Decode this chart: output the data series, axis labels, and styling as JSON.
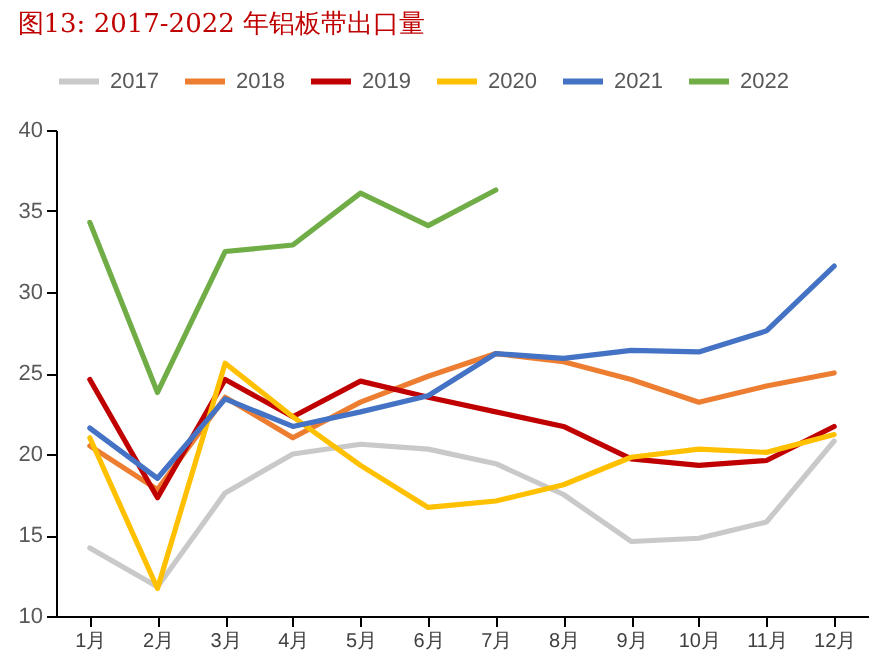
{
  "chart_data": {
    "type": "line",
    "title": "图13:    2017-2022 年铝板带出口量",
    "categories": [
      "1月",
      "2月",
      "3月",
      "4月",
      "5月",
      "6月",
      "7月",
      "8月",
      "9月",
      "10月",
      "11月",
      "12月"
    ],
    "series": [
      {
        "name": "2017",
        "color": "#c9c9c9",
        "values": [
          14.2,
          11.8,
          17.6,
          20.0,
          20.6,
          20.3,
          19.4,
          17.5,
          14.6,
          14.8,
          15.8,
          20.8
        ]
      },
      {
        "name": "2018",
        "color": "#ed7d31",
        "values": [
          20.5,
          17.8,
          23.5,
          21.0,
          23.2,
          24.8,
          26.2,
          25.7,
          24.6,
          23.2,
          24.2,
          25.0
        ]
      },
      {
        "name": "2019",
        "color": "#c00000",
        "values": [
          24.6,
          17.3,
          24.6,
          22.3,
          24.5,
          23.5,
          22.6,
          21.7,
          19.7,
          19.3,
          19.6,
          21.7
        ]
      },
      {
        "name": "2020",
        "color": "#ffc000",
        "values": [
          21.0,
          11.7,
          25.6,
          22.3,
          19.3,
          16.7,
          17.1,
          18.1,
          19.8,
          20.3,
          20.1,
          21.2
        ]
      },
      {
        "name": "2021",
        "color": "#4472c4",
        "values": [
          21.6,
          18.5,
          23.4,
          21.7,
          22.6,
          23.6,
          26.2,
          25.9,
          26.4,
          26.3,
          27.6,
          31.6
        ]
      },
      {
        "name": "2022",
        "color": "#70ad47",
        "values": [
          34.3,
          23.8,
          32.5,
          32.9,
          36.1,
          34.1,
          36.3,
          null,
          null,
          null,
          null,
          null
        ]
      }
    ],
    "ylim": [
      10,
      40
    ],
    "yticks": [
      10,
      15,
      20,
      25,
      30,
      35,
      40
    ],
    "grid": false,
    "legend": "top",
    "marker": "none",
    "line_style": "solid"
  }
}
